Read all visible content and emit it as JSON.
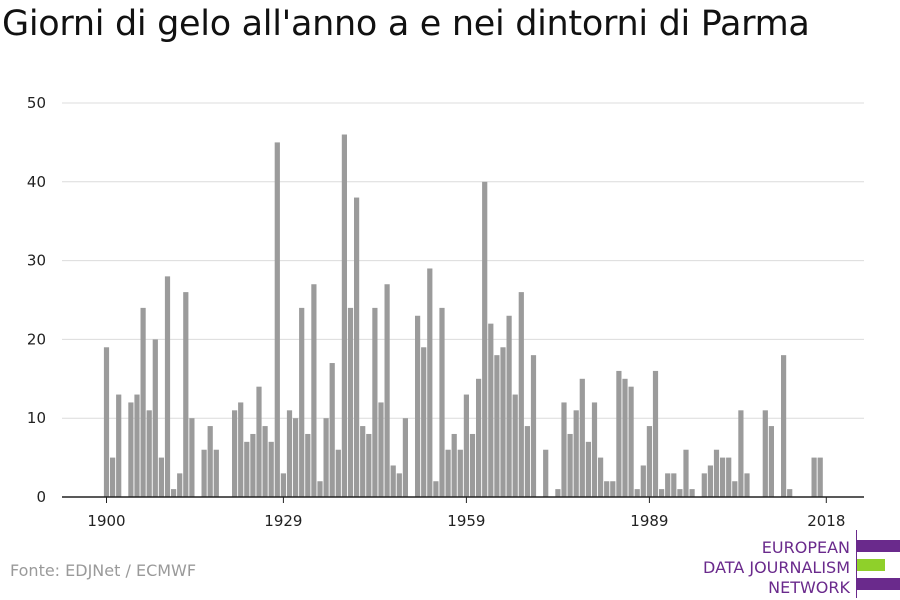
{
  "title": "Giorni di gelo all'anno a e nei dintorni di Parma",
  "source": "Fonte: EDJNet / ECMWF",
  "logo": {
    "lines": [
      "EUROPEAN",
      "DATA JOURNALISM",
      "NETWORK"
    ],
    "colors": {
      "purple": "#6a2a8c",
      "green": "#8fd02a"
    }
  },
  "colors": {
    "bar": "#9b9b9b",
    "grid": "#dcdcdc",
    "axis": "#222222"
  },
  "chart_data": {
    "type": "bar",
    "title": "Giorni di gelo all'anno a e nei dintorni di Parma",
    "xlabel": "",
    "ylabel": "",
    "ylim": [
      0,
      50
    ],
    "yticks": [
      0,
      10,
      20,
      30,
      40,
      50
    ],
    "xticks": [
      1900,
      1929,
      1959,
      1989,
      2018
    ],
    "grid": true,
    "x": [
      1900,
      1901,
      1902,
      1903,
      1904,
      1905,
      1906,
      1907,
      1908,
      1909,
      1910,
      1911,
      1912,
      1913,
      1914,
      1915,
      1916,
      1917,
      1918,
      1919,
      1920,
      1921,
      1922,
      1923,
      1924,
      1925,
      1926,
      1927,
      1928,
      1929,
      1930,
      1931,
      1932,
      1933,
      1934,
      1935,
      1936,
      1937,
      1938,
      1939,
      1940,
      1941,
      1942,
      1943,
      1944,
      1945,
      1946,
      1947,
      1948,
      1949,
      1950,
      1951,
      1952,
      1953,
      1954,
      1955,
      1956,
      1957,
      1958,
      1959,
      1960,
      1961,
      1962,
      1963,
      1964,
      1965,
      1966,
      1967,
      1968,
      1969,
      1970,
      1971,
      1972,
      1973,
      1974,
      1975,
      1976,
      1977,
      1978,
      1979,
      1980,
      1981,
      1982,
      1983,
      1984,
      1985,
      1986,
      1987,
      1988,
      1989,
      1990,
      1991,
      1992,
      1993,
      1994,
      1995,
      1996,
      1997,
      1998,
      1999,
      2000,
      2001,
      2002,
      2003,
      2004,
      2005,
      2006,
      2007,
      2008,
      2009,
      2010,
      2011,
      2012,
      2013,
      2014,
      2015,
      2016,
      2017,
      2018
    ],
    "values": [
      19,
      5,
      13,
      0,
      12,
      13,
      24,
      11,
      20,
      5,
      28,
      1,
      3,
      26,
      10,
      0,
      6,
      9,
      6,
      0,
      0,
      11,
      12,
      7,
      8,
      14,
      9,
      7,
      45,
      3,
      11,
      10,
      24,
      8,
      27,
      2,
      10,
      17,
      6,
      46,
      24,
      38,
      9,
      8,
      24,
      12,
      27,
      4,
      3,
      10,
      0,
      23,
      19,
      29,
      2,
      24,
      6,
      8,
      6,
      13,
      8,
      15,
      40,
      22,
      18,
      19,
      23,
      13,
      26,
      9,
      18,
      0,
      6,
      0,
      1,
      12,
      8,
      11,
      15,
      7,
      12,
      5,
      2,
      2,
      16,
      15,
      14,
      1,
      4,
      9,
      16,
      1,
      3,
      3,
      1,
      6,
      1,
      0,
      3,
      4,
      6,
      5,
      5,
      2,
      11,
      3,
      0,
      0,
      11,
      9,
      0,
      18,
      1,
      0,
      0,
      0,
      5,
      5,
      0
    ]
  }
}
